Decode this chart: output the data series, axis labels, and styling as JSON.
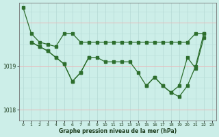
{
  "title": "Graphe pression niveau de la mer (hPa)",
  "background_color": "#cceee8",
  "grid_color_v": "#b8ddd8",
  "grid_color_h": "#e8b8b8",
  "line_color": "#2d6e2d",
  "xlim": [
    -0.5,
    23.5
  ],
  "ylim": [
    1017.75,
    1020.45
  ],
  "yticks": [
    1018,
    1019
  ],
  "xtick_labels": [
    "0",
    "1",
    "2",
    "3",
    "4",
    "5",
    "6",
    "7",
    "8",
    "9",
    "10",
    "11",
    "12",
    "13",
    "14",
    "15",
    "16",
    "17",
    "18",
    "19",
    "20",
    "21",
    "22",
    "23"
  ],
  "series": [
    {
      "x": [
        0,
        1,
        2,
        3,
        4,
        5,
        6,
        7,
        8,
        9,
        10,
        11,
        12,
        13,
        14,
        15,
        16,
        17,
        18,
        19,
        20,
        21,
        22
      ],
      "y": [
        1020.35,
        1019.75,
        1019.55,
        1019.5,
        1019.45,
        1019.75,
        1019.75,
        1019.55,
        1019.55,
        1019.55,
        1019.55,
        1019.55,
        1019.55,
        1019.55,
        1019.55,
        1019.55,
        1019.55,
        1019.55,
        1019.55,
        1019.55,
        1019.55,
        1019.75,
        1019.75
      ]
    },
    {
      "x": [
        1,
        2,
        3,
        4,
        5,
        6,
        7,
        8
      ],
      "y": [
        1019.55,
        1019.45,
        1019.35,
        1019.2,
        1019.05,
        1018.65,
        1018.85,
        1019.2
      ]
    },
    {
      "x": [
        1,
        2,
        3,
        4,
        5,
        6,
        7,
        8,
        9,
        10,
        11,
        12,
        13,
        14,
        15,
        16,
        17,
        18,
        19,
        20,
        21,
        22
      ],
      "y": [
        1019.55,
        1019.45,
        1019.35,
        1019.2,
        1019.05,
        1018.65,
        1018.85,
        1019.2,
        1019.2,
        1019.1,
        1019.1,
        1019.1,
        1019.1,
        1018.85,
        1018.55,
        1018.75,
        1018.55,
        1018.4,
        1018.55,
        1019.2,
        1018.95,
        1019.65
      ]
    },
    {
      "x": [
        15,
        16,
        17,
        18,
        19,
        20,
        21,
        22
      ],
      "y": [
        1018.55,
        1018.75,
        1018.55,
        1018.4,
        1018.3,
        1018.55,
        1019.0,
        1019.75
      ]
    }
  ]
}
